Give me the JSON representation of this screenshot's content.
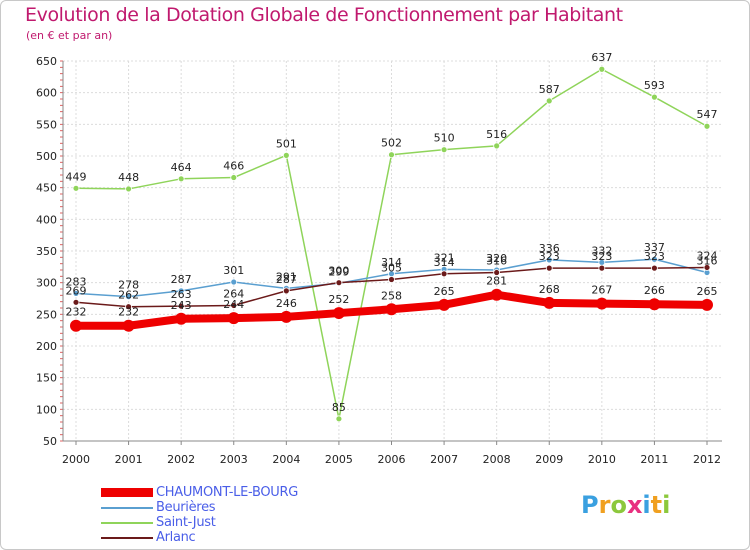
{
  "chart_data": {
    "type": "line",
    "title": "Evolution de la Dotation Globale de Fonctionnement par Habitant",
    "subtitle": "(en € et par an)",
    "xlabel": "",
    "ylabel": "",
    "ylim": [
      50,
      650
    ],
    "yticks": [
      50,
      100,
      150,
      200,
      250,
      300,
      350,
      400,
      450,
      500,
      550,
      600,
      650
    ],
    "categories": [
      "2000",
      "2001",
      "2002",
      "2003",
      "2004",
      "2005",
      "2006",
      "2007",
      "2008",
      "2009",
      "2010",
      "2011",
      "2012"
    ],
    "grid": true,
    "series": [
      {
        "name": "Saint-Just",
        "color": "#8fd45a",
        "values": [
          449,
          448,
          464,
          466,
          501,
          85,
          502,
          510,
          516,
          587,
          637,
          593,
          547
        ]
      },
      {
        "name": "Beurières",
        "color": "#5a9fd0",
        "values": [
          283,
          278,
          287,
          301,
          291,
          299,
          314,
          321,
          320,
          336,
          332,
          337,
          316
        ]
      },
      {
        "name": "Arlanc",
        "color": "#6b1a1a",
        "values": [
          269,
          262,
          263,
          264,
          287,
          300,
          305,
          314,
          316,
          323,
          323,
          323,
          324
        ]
      },
      {
        "name": "CHAUMONT-LE-BOURG",
        "color": "#ee0000",
        "values": [
          232,
          232,
          243,
          244,
          246,
          252,
          258,
          265,
          281,
          268,
          267,
          266,
          265
        ]
      }
    ]
  },
  "legend": [
    {
      "name": "CHAUMONT-LE-BOURG",
      "color": "#ee0000",
      "thick": true
    },
    {
      "name": "Beurières",
      "color": "#5a9fd0",
      "thick": false
    },
    {
      "name": "Saint-Just",
      "color": "#8fd45a",
      "thick": false
    },
    {
      "name": "Arlanc",
      "color": "#6b1a1a",
      "thick": false
    }
  ],
  "brand": {
    "letters": [
      "P",
      "r",
      "o",
      "x",
      "i",
      "t",
      "i"
    ],
    "colors": [
      "#3aa0e0",
      "#f0a020",
      "#8cc83c",
      "#e83080",
      "#3aa0e0",
      "#f0a020",
      "#8cc83c"
    ]
  }
}
